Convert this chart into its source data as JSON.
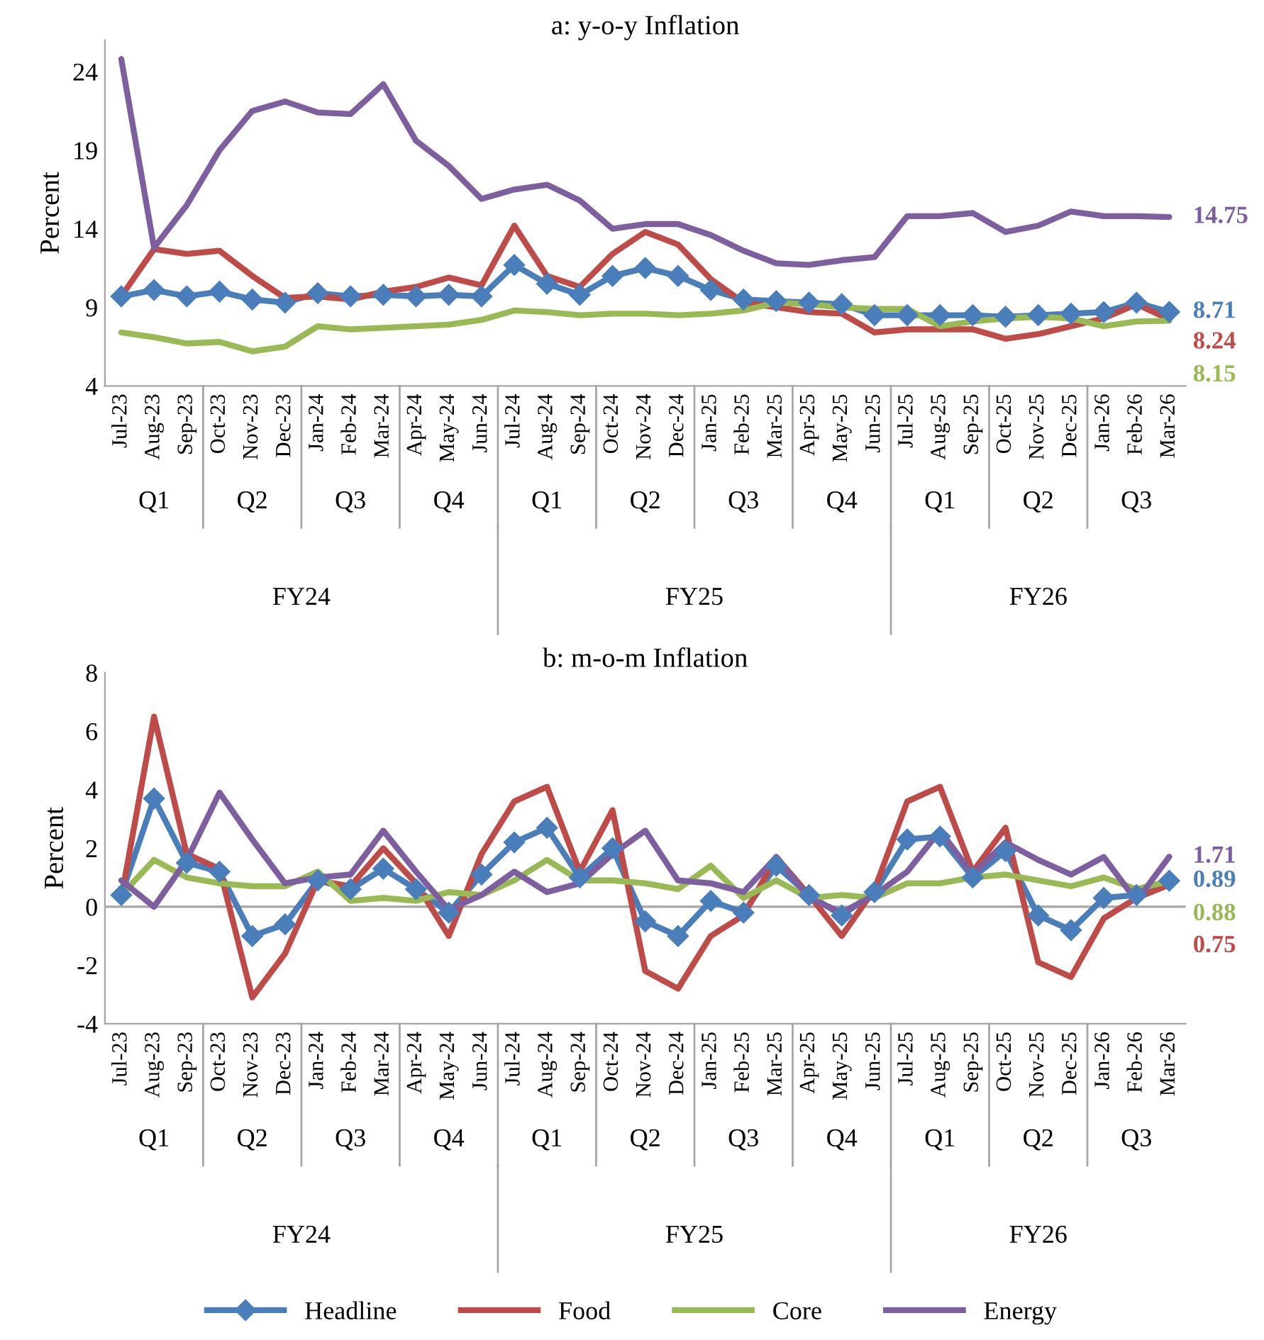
{
  "chart_data": [
    {
      "type": "line",
      "title": "a: y-o-y Inflation",
      "ylabel": "Percent",
      "categories": [
        "Jul-23",
        "Aug-23",
        "Sep-23",
        "Oct-23",
        "Nov-23",
        "Dec-23",
        "Jan-24",
        "Feb-24",
        "Mar-24",
        "Apr-24",
        "May-24",
        "Jun-24",
        "Jul-24",
        "Aug-24",
        "Sep-24",
        "Oct-24",
        "Nov-24",
        "Dec-24",
        "Jan-25",
        "Feb-25",
        "Mar-25",
        "Apr-25",
        "May-25",
        "Jun-25",
        "Jul-25",
        "Aug-25",
        "Sep-25",
        "Oct-25",
        "Nov-25",
        "Dec-25",
        "Jan-26",
        "Feb-26",
        "Mar-26"
      ],
      "ylim": [
        4,
        26
      ],
      "yticks": [
        4,
        9,
        14,
        19,
        24
      ],
      "grid": false,
      "legend": "bottom",
      "annotations": [
        "Q1",
        "Q2",
        "Q3",
        "Q4",
        "Q1",
        "Q2",
        "Q3",
        "Q4",
        "Q1",
        "Q2",
        "Q3",
        "FY24",
        "FY25",
        "FY26"
      ],
      "series": [
        {
          "name": "Headline",
          "color": "#4a7ebb",
          "marker": "diamond",
          "values": [
            9.7,
            10.1,
            9.7,
            10.0,
            9.5,
            9.3,
            9.9,
            9.7,
            9.8,
            9.7,
            9.8,
            9.7,
            11.7,
            10.5,
            9.8,
            11.0,
            11.5,
            11.0,
            10.1,
            9.5,
            9.4,
            9.3,
            9.2,
            8.5,
            8.5,
            8.5,
            8.5,
            8.4,
            8.5,
            8.6,
            8.7,
            9.3,
            8.71
          ],
          "value_labels": [
            null,
            null,
            null,
            null,
            null,
            null,
            null,
            null,
            null,
            null,
            null,
            null,
            null,
            null,
            null,
            null,
            null,
            null,
            null,
            null,
            null,
            null,
            null,
            null,
            null,
            null,
            null,
            null,
            null,
            null,
            null,
            null,
            "8.71"
          ]
        },
        {
          "name": "Food",
          "color": "#be4b48",
          "values": [
            9.7,
            12.7,
            12.4,
            12.6,
            11.0,
            9.6,
            9.7,
            9.5,
            10.0,
            10.3,
            10.9,
            10.4,
            14.2,
            11.0,
            10.3,
            12.4,
            13.8,
            13.0,
            10.8,
            9.3,
            9.0,
            8.7,
            8.6,
            7.4,
            7.6,
            7.6,
            7.6,
            7.0,
            7.3,
            7.8,
            8.3,
            9.2,
            8.24
          ],
          "value_labels": [
            null,
            null,
            null,
            null,
            null,
            null,
            null,
            null,
            null,
            null,
            null,
            null,
            null,
            null,
            null,
            null,
            null,
            null,
            null,
            null,
            null,
            null,
            null,
            null,
            null,
            null,
            null,
            null,
            null,
            null,
            null,
            null,
            "8.24"
          ]
        },
        {
          "name": "Core",
          "color": "#98b954",
          "values": [
            7.4,
            7.1,
            6.7,
            6.8,
            6.2,
            6.5,
            7.8,
            7.6,
            7.7,
            7.8,
            7.9,
            8.2,
            8.8,
            8.7,
            8.5,
            8.6,
            8.6,
            8.5,
            8.6,
            8.8,
            9.3,
            9.2,
            9.0,
            8.9,
            8.9,
            7.8,
            8.1,
            8.3,
            8.4,
            8.3,
            7.8,
            8.1,
            8.15
          ],
          "value_labels": [
            null,
            null,
            null,
            null,
            null,
            null,
            null,
            null,
            null,
            null,
            null,
            null,
            null,
            null,
            null,
            null,
            null,
            null,
            null,
            null,
            null,
            null,
            null,
            null,
            null,
            null,
            null,
            null,
            null,
            null,
            null,
            null,
            "8.15"
          ]
        },
        {
          "name": "Energy",
          "color": "#7d5fa0",
          "values": [
            24.8,
            12.8,
            15.5,
            19.0,
            21.5,
            22.1,
            21.4,
            21.3,
            23.2,
            19.6,
            18.0,
            15.9,
            16.5,
            16.8,
            15.8,
            14.0,
            14.3,
            14.3,
            13.6,
            12.6,
            11.8,
            11.7,
            12.0,
            12.2,
            14.8,
            14.8,
            15.0,
            13.8,
            14.2,
            15.1,
            14.8,
            14.8,
            14.75
          ],
          "value_labels": [
            null,
            null,
            null,
            null,
            null,
            null,
            null,
            null,
            null,
            null,
            null,
            null,
            null,
            null,
            null,
            null,
            null,
            null,
            null,
            null,
            null,
            null,
            null,
            null,
            null,
            null,
            null,
            null,
            null,
            null,
            null,
            null,
            "14.75"
          ]
        }
      ]
    },
    {
      "type": "line",
      "title": "b: m-o-m Inflation",
      "ylabel": "Percent",
      "categories": [
        "Jul-23",
        "Aug-23",
        "Sep-23",
        "Oct-23",
        "Nov-23",
        "Dec-23",
        "Jan-24",
        "Feb-24",
        "Mar-24",
        "Apr-24",
        "May-24",
        "Jun-24",
        "Jul-24",
        "Aug-24",
        "Sep-24",
        "Oct-24",
        "Nov-24",
        "Dec-24",
        "Jan-25",
        "Feb-25",
        "Mar-25",
        "Apr-25",
        "May-25",
        "Jun-25",
        "Jul-25",
        "Aug-25",
        "Sep-25",
        "Oct-25",
        "Nov-25",
        "Dec-25",
        "Jan-26",
        "Feb-26",
        "Mar-26"
      ],
      "ylim": [
        -4,
        8
      ],
      "yticks": [
        -4,
        -2,
        0,
        2,
        4,
        6,
        8
      ],
      "grid": false,
      "annotations": [
        "Q1",
        "Q2",
        "Q3",
        "Q4",
        "Q1",
        "Q2",
        "Q3",
        "Q4",
        "Q1",
        "Q2",
        "Q3",
        "FY24",
        "FY25",
        "FY26"
      ],
      "ref_lines": [
        {
          "axis": "y",
          "value": 0,
          "color": "#a6a6a6"
        }
      ],
      "series": [
        {
          "color": "#4a7ebb",
          "marker": "diamond",
          "values": [
            0.4,
            3.7,
            1.5,
            1.2,
            -1.0,
            -0.6,
            0.9,
            0.6,
            1.3,
            0.6,
            -0.2,
            1.1,
            2.2,
            2.7,
            1.0,
            2.0,
            -0.5,
            -1.0,
            0.2,
            -0.2,
            1.4,
            0.4,
            -0.3,
            0.5,
            2.3,
            2.4,
            1.0,
            1.9,
            -0.3,
            -0.8,
            0.3,
            0.4,
            0.89
          ],
          "value_labels": [
            null,
            null,
            null,
            null,
            null,
            null,
            null,
            null,
            null,
            null,
            null,
            null,
            null,
            null,
            null,
            null,
            null,
            null,
            null,
            null,
            null,
            null,
            null,
            null,
            null,
            null,
            null,
            null,
            null,
            null,
            null,
            null,
            "0.89"
          ]
        },
        {
          "color": "#be4b48",
          "values": [
            0.3,
            6.5,
            1.8,
            1.3,
            -3.1,
            -1.6,
            0.9,
            0.7,
            2.0,
            0.8,
            -1.0,
            1.8,
            3.6,
            4.1,
            1.2,
            3.3,
            -2.2,
            -2.8,
            -1.0,
            -0.3,
            1.7,
            0.4,
            -1.0,
            0.6,
            3.6,
            4.1,
            1.2,
            2.7,
            -1.9,
            -2.4,
            -0.4,
            0.3,
            0.75
          ],
          "value_labels": [
            null,
            null,
            null,
            null,
            null,
            null,
            null,
            null,
            null,
            null,
            null,
            null,
            null,
            null,
            null,
            null,
            null,
            null,
            null,
            null,
            null,
            null,
            null,
            null,
            null,
            null,
            null,
            null,
            null,
            null,
            null,
            null,
            "0.75"
          ]
        },
        {
          "color": "#98b954",
          "values": [
            0.4,
            1.6,
            1.0,
            0.8,
            0.7,
            0.7,
            1.2,
            0.2,
            0.3,
            0.2,
            0.5,
            0.4,
            0.9,
            1.6,
            0.9,
            0.9,
            0.8,
            0.6,
            1.4,
            0.3,
            0.9,
            0.3,
            0.4,
            0.3,
            0.8,
            0.8,
            1.0,
            1.1,
            0.9,
            0.7,
            1.0,
            0.6,
            0.88
          ],
          "value_labels": [
            null,
            null,
            null,
            null,
            null,
            null,
            null,
            null,
            null,
            null,
            null,
            null,
            null,
            null,
            null,
            null,
            null,
            null,
            null,
            null,
            null,
            null,
            null,
            null,
            null,
            null,
            null,
            null,
            null,
            null,
            null,
            null,
            "0.88"
          ]
        },
        {
          "color": "#7d5fa0",
          "values": [
            0.9,
            0.0,
            1.6,
            3.9,
            2.3,
            0.8,
            1.0,
            1.1,
            2.6,
            1.2,
            -0.1,
            0.4,
            1.2,
            0.5,
            0.8,
            1.8,
            2.6,
            0.9,
            0.8,
            0.5,
            1.7,
            0.3,
            -0.2,
            0.4,
            1.2,
            2.6,
            1.1,
            2.2,
            1.6,
            1.1,
            1.7,
            0.2,
            1.71
          ],
          "value_labels": [
            null,
            null,
            null,
            null,
            null,
            null,
            null,
            null,
            null,
            null,
            null,
            null,
            null,
            null,
            null,
            null,
            null,
            null,
            null,
            null,
            null,
            null,
            null,
            null,
            null,
            null,
            null,
            null,
            null,
            null,
            null,
            null,
            "1.71"
          ]
        }
      ]
    }
  ]
}
